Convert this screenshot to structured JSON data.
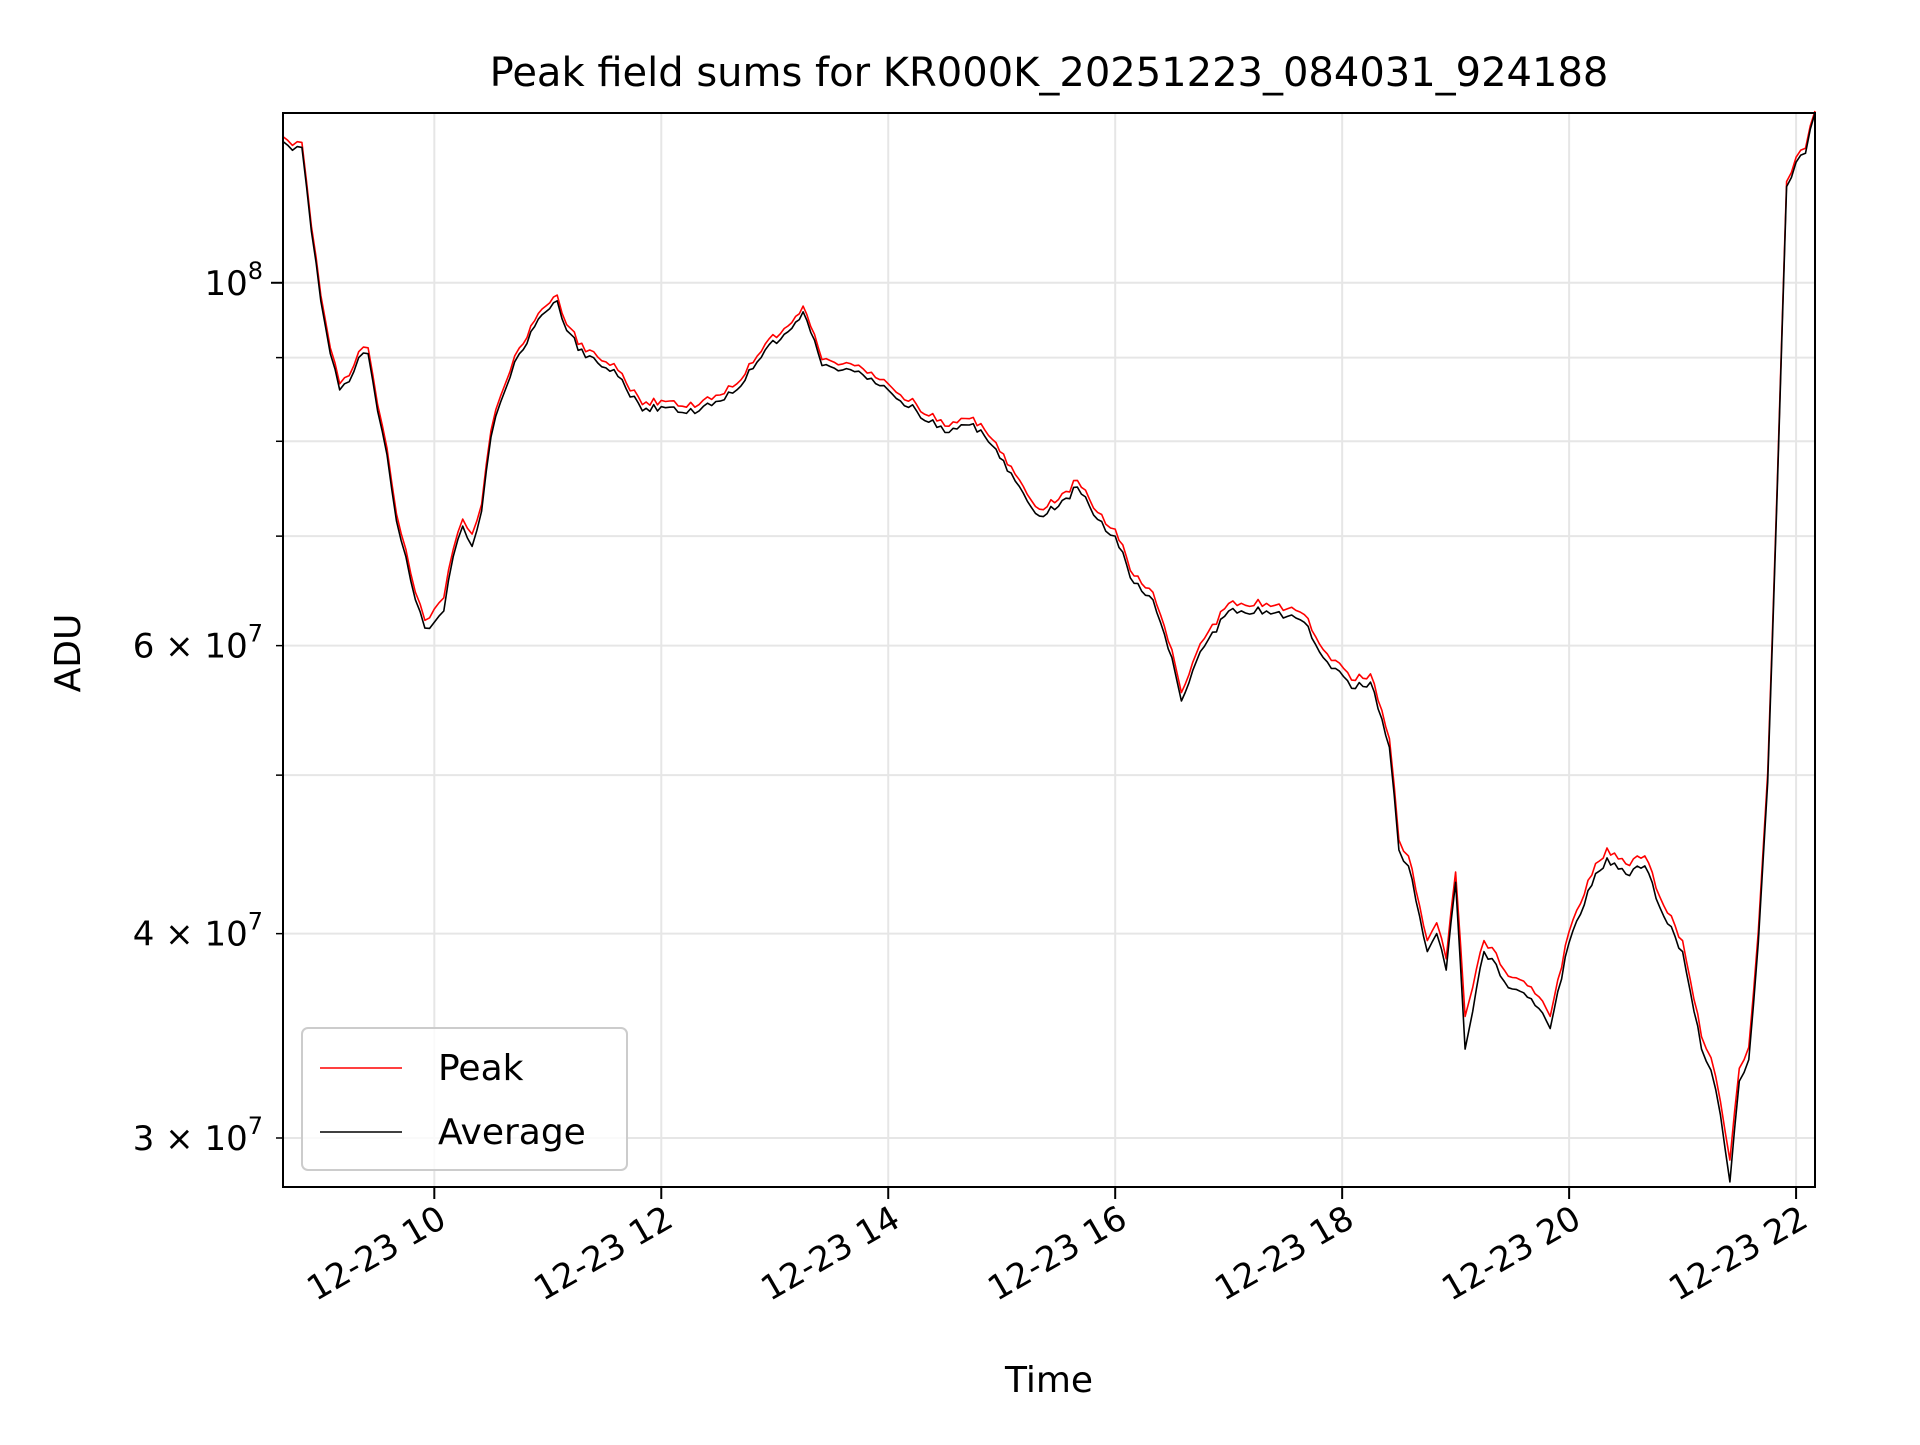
{
  "chart_data": {
    "type": "line",
    "title": "Peak field sums for KR000K_20251223_084031_924188",
    "xlabel": "Time",
    "ylabel": "ADU",
    "y_scale": "log",
    "ylim": [
      28000000,
      127000000
    ],
    "xlim": [
      "2025-12-23 08:40",
      "2025-12-23 22:10"
    ],
    "x_ticks": [
      {
        "value": "2025-12-23 10:00",
        "label": "12-23 10"
      },
      {
        "value": "2025-12-23 12:00",
        "label": "12-23 12"
      },
      {
        "value": "2025-12-23 14:00",
        "label": "12-23 14"
      },
      {
        "value": "2025-12-23 16:00",
        "label": "12-23 16"
      },
      {
        "value": "2025-12-23 18:00",
        "label": "12-23 18"
      },
      {
        "value": "2025-12-23 20:00",
        "label": "12-23 20"
      },
      {
        "value": "2025-12-23 22:00",
        "label": "12-23 22"
      }
    ],
    "y_major_ticks": [
      {
        "value": 100000000,
        "base": "10",
        "exp": "8"
      }
    ],
    "y_minor_ticks": [
      {
        "value": 30000000,
        "base": "3 × 10",
        "exp": "7"
      },
      {
        "value": 40000000,
        "base": "4 × 10",
        "exp": "7"
      },
      {
        "value": 60000000,
        "base": "6 × 10",
        "exp": "7"
      }
    ],
    "y_minor_unlabeled": [
      50000000,
      70000000,
      80000000,
      90000000
    ],
    "grid": true,
    "legend_position": "lower-left",
    "series": [
      {
        "name": "Peak",
        "color": "#ff0000",
        "x": [
          "2025-12-23 08:40",
          "2025-12-23 08:45",
          "2025-12-23 08:50",
          "2025-12-23 08:55",
          "2025-12-23 09:00",
          "2025-12-23 09:05",
          "2025-12-23 09:10",
          "2025-12-23 09:15",
          "2025-12-23 09:20",
          "2025-12-23 09:25",
          "2025-12-23 09:30",
          "2025-12-23 09:35",
          "2025-12-23 09:40",
          "2025-12-23 09:45",
          "2025-12-23 09:50",
          "2025-12-23 09:55",
          "2025-12-23 10:00",
          "2025-12-23 10:05",
          "2025-12-23 10:10",
          "2025-12-23 10:15",
          "2025-12-23 10:20",
          "2025-12-23 10:25",
          "2025-12-23 10:30",
          "2025-12-23 10:35",
          "2025-12-23 10:40",
          "2025-12-23 10:45",
          "2025-12-23 10:55",
          "2025-12-23 11:05",
          "2025-12-23 11:10",
          "2025-12-23 11:20",
          "2025-12-23 11:35",
          "2025-12-23 11:50",
          "2025-12-23 12:00",
          "2025-12-23 12:20",
          "2025-12-23 12:40",
          "2025-12-23 12:55",
          "2025-12-23 13:05",
          "2025-12-23 13:15",
          "2025-12-23 13:25",
          "2025-12-23 13:40",
          "2025-12-23 14:00",
          "2025-12-23 14:15",
          "2025-12-23 14:30",
          "2025-12-23 14:45",
          "2025-12-23 14:55",
          "2025-12-23 15:05",
          "2025-12-23 15:20",
          "2025-12-23 15:30",
          "2025-12-23 15:40",
          "2025-12-23 15:55",
          "2025-12-23 16:00",
          "2025-12-23 16:10",
          "2025-12-23 16:20",
          "2025-12-23 16:30",
          "2025-12-23 16:35",
          "2025-12-23 16:45",
          "2025-12-23 17:00",
          "2025-12-23 17:20",
          "2025-12-23 17:40",
          "2025-12-23 17:50",
          "2025-12-23 18:05",
          "2025-12-23 18:15",
          "2025-12-23 18:25",
          "2025-12-23 18:30",
          "2025-12-23 18:35",
          "2025-12-23 18:45",
          "2025-12-23 18:50",
          "2025-12-23 18:55",
          "2025-12-23 19:00",
          "2025-12-23 19:05",
          "2025-12-23 19:15",
          "2025-12-23 19:30",
          "2025-12-23 19:40",
          "2025-12-23 19:50",
          "2025-12-23 20:00",
          "2025-12-23 20:10",
          "2025-12-23 20:20",
          "2025-12-23 20:30",
          "2025-12-23 20:40",
          "2025-12-23 20:50",
          "2025-12-23 21:00",
          "2025-12-23 21:10",
          "2025-12-23 21:15",
          "2025-12-23 21:20",
          "2025-12-23 21:25",
          "2025-12-23 21:30",
          "2025-12-23 21:35",
          "2025-12-23 21:40",
          "2025-12-23 21:45",
          "2025-12-23 21:50",
          "2025-12-23 21:55",
          "2025-12-23 22:00",
          "2025-12-23 22:05",
          "2025-12-23 22:10"
        ],
        "values": [
          122500000,
          121000000,
          121500000,
          108000000,
          98000000,
          91000000,
          86500000,
          87500000,
          90500000,
          91000000,
          84000000,
          79000000,
          72000000,
          68500000,
          64500000,
          62000000,
          63000000,
          64000000,
          68500000,
          71500000,
          70000000,
          73000000,
          81000000,
          85000000,
          88000000,
          91000000,
          95500000,
          98000000,
          94000000,
          90500000,
          89000000,
          84000000,
          84500000,
          84000000,
          86500000,
          91500000,
          93500000,
          96500000,
          89500000,
          89000000,
          86500000,
          84000000,
          81500000,
          82500000,
          80000000,
          77000000,
          72500000,
          73500000,
          75500000,
          71000000,
          70500000,
          66000000,
          64500000,
          59500000,
          56000000,
          60000000,
          63500000,
          63500000,
          62500000,
          59500000,
          57000000,
          57500000,
          52500000,
          45500000,
          44500000,
          39500000,
          40500000,
          38500000,
          43500000,
          35500000,
          39500000,
          37500000,
          37000000,
          35500000,
          40000000,
          43000000,
          45000000,
          44000000,
          44500000,
          41500000,
          39500000,
          34500000,
          33500000,
          31500000,
          29000000,
          33000000,
          34000000,
          40000000,
          50000000,
          75000000,
          115000000,
          119000000,
          120500000,
          127000000
        ]
      },
      {
        "name": "Average",
        "color": "#000000",
        "x": [
          "2025-12-23 08:40",
          "2025-12-23 08:45",
          "2025-12-23 08:50",
          "2025-12-23 08:55",
          "2025-12-23 09:00",
          "2025-12-23 09:05",
          "2025-12-23 09:10",
          "2025-12-23 09:15",
          "2025-12-23 09:20",
          "2025-12-23 09:25",
          "2025-12-23 09:30",
          "2025-12-23 09:35",
          "2025-12-23 09:40",
          "2025-12-23 09:45",
          "2025-12-23 09:50",
          "2025-12-23 09:55",
          "2025-12-23 10:00",
          "2025-12-23 10:05",
          "2025-12-23 10:10",
          "2025-12-23 10:15",
          "2025-12-23 10:20",
          "2025-12-23 10:25",
          "2025-12-23 10:30",
          "2025-12-23 10:35",
          "2025-12-23 10:40",
          "2025-12-23 10:45",
          "2025-12-23 10:55",
          "2025-12-23 11:05",
          "2025-12-23 11:10",
          "2025-12-23 11:20",
          "2025-12-23 11:35",
          "2025-12-23 11:50",
          "2025-12-23 12:00",
          "2025-12-23 12:20",
          "2025-12-23 12:40",
          "2025-12-23 12:55",
          "2025-12-23 13:05",
          "2025-12-23 13:15",
          "2025-12-23 13:25",
          "2025-12-23 13:40",
          "2025-12-23 14:00",
          "2025-12-23 14:15",
          "2025-12-23 14:30",
          "2025-12-23 14:45",
          "2025-12-23 14:55",
          "2025-12-23 15:05",
          "2025-12-23 15:20",
          "2025-12-23 15:30",
          "2025-12-23 15:40",
          "2025-12-23 15:55",
          "2025-12-23 16:00",
          "2025-12-23 16:10",
          "2025-12-23 16:20",
          "2025-12-23 16:30",
          "2025-12-23 16:35",
          "2025-12-23 16:45",
          "2025-12-23 17:00",
          "2025-12-23 17:20",
          "2025-12-23 17:40",
          "2025-12-23 17:50",
          "2025-12-23 18:05",
          "2025-12-23 18:15",
          "2025-12-23 18:25",
          "2025-12-23 18:30",
          "2025-12-23 18:35",
          "2025-12-23 18:45",
          "2025-12-23 18:50",
          "2025-12-23 18:55",
          "2025-12-23 19:00",
          "2025-12-23 19:05",
          "2025-12-23 19:15",
          "2025-12-23 19:30",
          "2025-12-23 19:40",
          "2025-12-23 19:50",
          "2025-12-23 20:00",
          "2025-12-23 20:10",
          "2025-12-23 20:20",
          "2025-12-23 20:30",
          "2025-12-23 20:40",
          "2025-12-23 20:50",
          "2025-12-23 21:00",
          "2025-12-23 21:10",
          "2025-12-23 21:15",
          "2025-12-23 21:20",
          "2025-12-23 21:25",
          "2025-12-23 21:30",
          "2025-12-23 21:35",
          "2025-12-23 21:40",
          "2025-12-23 21:45",
          "2025-12-23 21:50",
          "2025-12-23 21:55",
          "2025-12-23 22:00",
          "2025-12-23 22:05",
          "2025-12-23 22:10"
        ],
        "values": [
          122000000,
          120500000,
          121000000,
          107500000,
          97500000,
          90500000,
          86000000,
          87000000,
          90000000,
          90500000,
          83500000,
          78500000,
          71500000,
          68000000,
          64000000,
          61500000,
          62000000,
          63000000,
          68000000,
          71000000,
          69000000,
          72500000,
          80500000,
          84500000,
          87500000,
          90500000,
          95000000,
          97500000,
          93500000,
          90000000,
          88500000,
          83500000,
          84000000,
          83500000,
          86000000,
          91000000,
          93000000,
          96000000,
          89000000,
          88500000,
          86000000,
          83500000,
          81000000,
          82000000,
          79500000,
          76500000,
          72000000,
          73000000,
          75000000,
          70500000,
          70000000,
          65500000,
          64000000,
          59000000,
          55500000,
          59500000,
          63000000,
          63000000,
          62000000,
          59000000,
          56500000,
          57000000,
          52000000,
          45000000,
          44000000,
          39000000,
          40000000,
          38000000,
          43000000,
          34000000,
          39000000,
          37000000,
          36500000,
          35000000,
          39500000,
          42500000,
          44500000,
          43500000,
          44000000,
          41000000,
          39000000,
          34000000,
          33000000,
          31000000,
          28200000,
          32500000,
          33500000,
          39500000,
          49500000,
          74500000,
          114500000,
          118500000,
          120000000,
          127000000
        ]
      }
    ]
  }
}
